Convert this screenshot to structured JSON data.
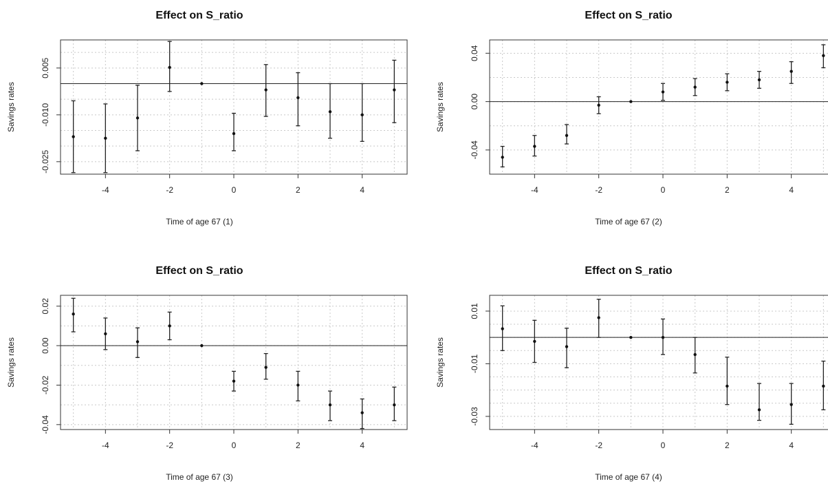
{
  "chart_data": [
    {
      "type": "scatter",
      "title": "Effect on S_ratio",
      "xlabel": "Time of age 67 (1)",
      "ylabel": "Savings rates",
      "x": [
        -5,
        -4,
        -3,
        -2,
        -1,
        0,
        1,
        2,
        3,
        4,
        5
      ],
      "y": [
        -0.017,
        -0.0175,
        -0.011,
        0.0052,
        0.0,
        -0.016,
        -0.002,
        -0.0045,
        -0.009,
        -0.01,
        -0.002
      ],
      "ci_low": [
        -0.0285,
        -0.0285,
        -0.0215,
        -0.0025,
        0.0,
        -0.0215,
        -0.0105,
        -0.0135,
        -0.0175,
        -0.0185,
        -0.0125
      ],
      "ci_high": [
        -0.0055,
        -0.0065,
        -0.0005,
        0.0135,
        0.0,
        -0.0095,
        0.0061,
        0.0035,
        -0.0,
        0.0,
        0.0075
      ],
      "xticks": [
        -4,
        -2,
        0,
        2,
        4
      ],
      "xtick_labels": [
        "-4",
        "-2",
        "0",
        "2",
        "4"
      ],
      "yticks": [
        0.005,
        -0.01,
        -0.025
      ],
      "ytick_labels": [
        "0.005",
        "-0.010",
        "-0.025"
      ],
      "xlim": [
        -5.4,
        5.4
      ],
      "ylim": [
        -0.029,
        0.014
      ],
      "xgrid": [
        -5,
        -4,
        -3,
        -2,
        -1,
        0,
        1,
        2,
        3,
        4,
        5
      ],
      "ygrid": [
        0.01,
        0.005,
        0.0,
        -0.005,
        -0.01,
        -0.015,
        -0.02,
        -0.025
      ],
      "hline": 0,
      "grid": true
    },
    {
      "type": "scatter",
      "title": "Effect on S_ratio",
      "xlabel": "Time of age 67 (2)",
      "ylabel": "Savings rates",
      "x": [
        -5,
        -4,
        -3,
        -2,
        -1,
        0,
        1,
        2,
        3,
        4,
        5
      ],
      "y": [
        -0.046,
        -0.037,
        -0.028,
        -0.003,
        0.0,
        0.008,
        0.012,
        0.016,
        0.018,
        0.025,
        0.038
      ],
      "ci_low": [
        -0.054,
        -0.045,
        -0.035,
        -0.01,
        0.0,
        0.001,
        0.005,
        0.009,
        0.011,
        0.015,
        0.028
      ],
      "ci_high": [
        -0.037,
        -0.028,
        -0.019,
        0.004,
        0.0,
        0.015,
        0.019,
        0.023,
        0.025,
        0.033,
        0.047
      ],
      "xticks": [
        -4,
        -2,
        0,
        2,
        4
      ],
      "xtick_labels": [
        "-4",
        "-2",
        "0",
        "2",
        "4"
      ],
      "yticks": [
        0.04,
        0.0,
        -0.04
      ],
      "ytick_labels": [
        "0.04",
        "0.00",
        "-0.04"
      ],
      "xlim": [
        -5.4,
        5.4
      ],
      "ylim": [
        -0.06,
        0.051
      ],
      "xgrid": [
        -5,
        -4,
        -3,
        -2,
        -1,
        0,
        1,
        2,
        3,
        4,
        5
      ],
      "ygrid": [
        0.04,
        0.02,
        0.0,
        -0.02,
        -0.04
      ],
      "hline": 0,
      "grid": true
    },
    {
      "type": "scatter",
      "title": "Effect on S_ratio",
      "xlabel": "Time of age 67 (3)",
      "ylabel": "Savings rates",
      "x": [
        -5,
        -4,
        -3,
        -2,
        -1,
        0,
        1,
        2,
        3,
        4,
        5
      ],
      "y": [
        0.016,
        0.006,
        0.002,
        0.01,
        0.0,
        -0.018,
        -0.011,
        -0.02,
        -0.03,
        -0.034,
        -0.03
      ],
      "ci_low": [
        0.007,
        -0.002,
        -0.006,
        0.003,
        0.0,
        -0.023,
        -0.017,
        -0.028,
        -0.038,
        -0.042,
        -0.038
      ],
      "ci_high": [
        0.024,
        0.014,
        0.009,
        0.017,
        0.0,
        -0.013,
        -0.004,
        -0.013,
        -0.023,
        -0.027,
        -0.021
      ],
      "xticks": [
        -4,
        -2,
        0,
        2,
        4
      ],
      "xtick_labels": [
        "-4",
        "-2",
        "0",
        "2",
        "4"
      ],
      "yticks": [
        0.02,
        0.0,
        -0.02,
        -0.04
      ],
      "ytick_labels": [
        "0.02",
        "0.00",
        "-0.02",
        "-0.04"
      ],
      "xlim": [
        -5.4,
        5.4
      ],
      "ylim": [
        -0.0425,
        0.0255
      ],
      "xgrid": [
        -5,
        -4,
        -3,
        -2,
        -1,
        0,
        1,
        2,
        3,
        4,
        5
      ],
      "ygrid": [
        0.02,
        0.01,
        0.0,
        -0.01,
        -0.02,
        -0.03,
        -0.04
      ],
      "hline": 0,
      "grid": true
    },
    {
      "type": "scatter",
      "title": "Effect on S_ratio",
      "xlabel": "Time of age 67 (4)",
      "ylabel": "Savings rates",
      "x": [
        -5,
        -4,
        -3,
        -2,
        -1,
        0,
        1,
        2,
        3,
        4,
        5
      ],
      "y": [
        0.0033,
        -0.0015,
        -0.0035,
        0.0075,
        0.0,
        0.0,
        -0.0065,
        -0.0185,
        -0.0275,
        -0.0255,
        -0.0185
      ],
      "ci_low": [
        -0.005,
        -0.0095,
        -0.0115,
        0.0,
        0.0,
        -0.0065,
        -0.0135,
        -0.0255,
        -0.0315,
        -0.033,
        -0.0275
      ],
      "ci_high": [
        0.012,
        0.0065,
        0.0035,
        0.0145,
        0.0,
        0.007,
        0.0,
        -0.0075,
        -0.0175,
        -0.0175,
        -0.009
      ],
      "xticks": [
        -4,
        -2,
        0,
        2,
        4
      ],
      "xtick_labels": [
        "-4",
        "-2",
        "0",
        "2",
        "4"
      ],
      "yticks": [
        0.01,
        -0.01,
        -0.03
      ],
      "ytick_labels": [
        "0.01",
        "-0.01",
        "-0.03"
      ],
      "xlim": [
        -5.4,
        5.4
      ],
      "ylim": [
        -0.035,
        0.016
      ],
      "xgrid": [
        -5,
        -4,
        -3,
        -2,
        -1,
        0,
        1,
        2,
        3,
        4,
        5
      ],
      "ygrid": [
        0.01,
        0.005,
        0.0,
        -0.005,
        -0.01,
        -0.015,
        -0.02,
        -0.025,
        -0.03
      ],
      "hline": 0,
      "grid": true
    }
  ]
}
